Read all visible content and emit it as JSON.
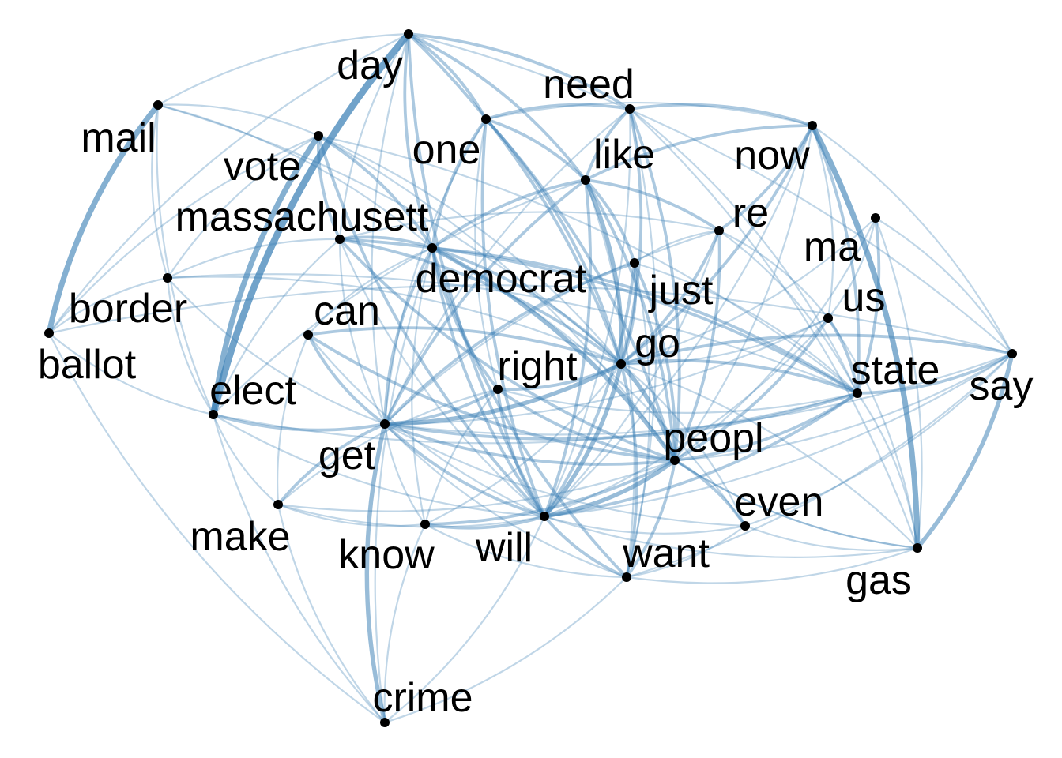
{
  "colors": {
    "background": "#ffffff",
    "edge": "#3a7fb5",
    "node": "#000000",
    "label": "#000000"
  },
  "nodes": [
    {
      "id": "day",
      "label": "day"
    },
    {
      "id": "need",
      "label": "need"
    },
    {
      "id": "mail",
      "label": "mail"
    },
    {
      "id": "one",
      "label": "one"
    },
    {
      "id": "now",
      "label": "now"
    },
    {
      "id": "vote",
      "label": "vote"
    },
    {
      "id": "like",
      "label": "like"
    },
    {
      "id": "massachusett",
      "label": "massachusett"
    },
    {
      "id": "re",
      "label": "re"
    },
    {
      "id": "ma",
      "label": "ma"
    },
    {
      "id": "democrat",
      "label": "democrat"
    },
    {
      "id": "just",
      "label": "just"
    },
    {
      "id": "border",
      "label": "border"
    },
    {
      "id": "can",
      "label": "can"
    },
    {
      "id": "us",
      "label": "us"
    },
    {
      "id": "ballot",
      "label": "ballot"
    },
    {
      "id": "go",
      "label": "go"
    },
    {
      "id": "right",
      "label": "right"
    },
    {
      "id": "state",
      "label": "state"
    },
    {
      "id": "say",
      "label": "say"
    },
    {
      "id": "elect",
      "label": "elect"
    },
    {
      "id": "peopl",
      "label": "peopl"
    },
    {
      "id": "get",
      "label": "get"
    },
    {
      "id": "even",
      "label": "even"
    },
    {
      "id": "make",
      "label": "make"
    },
    {
      "id": "know",
      "label": "know"
    },
    {
      "id": "will",
      "label": "will"
    },
    {
      "id": "want",
      "label": "want"
    },
    {
      "id": "gas",
      "label": "gas"
    },
    {
      "id": "crime",
      "label": "crime"
    }
  ],
  "edges": [
    {
      "source": "day",
      "target": "elect",
      "weight": 5
    },
    {
      "source": "mail",
      "target": "ballot",
      "weight": 4
    },
    {
      "source": "vote",
      "target": "elect",
      "weight": 4
    },
    {
      "source": "now",
      "target": "gas",
      "weight": 4
    },
    {
      "source": "say",
      "target": "gas",
      "weight": 3
    },
    {
      "source": "get",
      "target": "crime",
      "weight": 3
    },
    {
      "source": "day",
      "target": "need",
      "weight": 2
    },
    {
      "source": "day",
      "target": "one",
      "weight": 2
    },
    {
      "source": "day",
      "target": "like",
      "weight": 2
    },
    {
      "source": "day",
      "target": "democrat",
      "weight": 2
    },
    {
      "source": "day",
      "target": "go",
      "weight": 2
    },
    {
      "source": "day",
      "target": "will",
      "weight": 2
    },
    {
      "source": "day",
      "target": "get",
      "weight": 1
    },
    {
      "source": "day",
      "target": "mail",
      "weight": 1
    },
    {
      "source": "day",
      "target": "ballot",
      "weight": 1
    },
    {
      "source": "day",
      "target": "massachusett",
      "weight": 1
    },
    {
      "source": "day",
      "target": "say",
      "weight": 1
    },
    {
      "source": "need",
      "target": "one",
      "weight": 2
    },
    {
      "source": "need",
      "target": "like",
      "weight": 2
    },
    {
      "source": "need",
      "target": "now",
      "weight": 2
    },
    {
      "source": "need",
      "target": "go",
      "weight": 2
    },
    {
      "source": "need",
      "target": "peopl",
      "weight": 2
    },
    {
      "source": "need",
      "target": "get",
      "weight": 1
    },
    {
      "source": "need",
      "target": "want",
      "weight": 1
    },
    {
      "source": "need",
      "target": "state",
      "weight": 1
    },
    {
      "source": "need",
      "target": "will",
      "weight": 1
    },
    {
      "source": "mail",
      "target": "vote",
      "weight": 1
    },
    {
      "source": "mail",
      "target": "elect",
      "weight": 1
    },
    {
      "source": "mail",
      "target": "democrat",
      "weight": 1
    },
    {
      "source": "mail",
      "target": "border",
      "weight": 1
    },
    {
      "source": "mail",
      "target": "go",
      "weight": 1
    },
    {
      "source": "one",
      "target": "like",
      "weight": 2
    },
    {
      "source": "one",
      "target": "democrat",
      "weight": 2
    },
    {
      "source": "one",
      "target": "go",
      "weight": 2
    },
    {
      "source": "one",
      "target": "peopl",
      "weight": 2
    },
    {
      "source": "one",
      "target": "will",
      "weight": 2
    },
    {
      "source": "one",
      "target": "get",
      "weight": 1
    },
    {
      "source": "one",
      "target": "now",
      "weight": 1
    },
    {
      "source": "one",
      "target": "right",
      "weight": 1
    },
    {
      "source": "now",
      "target": "like",
      "weight": 2
    },
    {
      "source": "now",
      "target": "re",
      "weight": 2
    },
    {
      "source": "now",
      "target": "go",
      "weight": 2
    },
    {
      "source": "now",
      "target": "state",
      "weight": 2
    },
    {
      "source": "now",
      "target": "us",
      "weight": 1
    },
    {
      "source": "now",
      "target": "peopl",
      "weight": 1
    },
    {
      "source": "now",
      "target": "will",
      "weight": 1
    },
    {
      "source": "vote",
      "target": "massachusett",
      "weight": 2
    },
    {
      "source": "vote",
      "target": "democrat",
      "weight": 2
    },
    {
      "source": "vote",
      "target": "go",
      "weight": 1
    },
    {
      "source": "vote",
      "target": "will",
      "weight": 2
    },
    {
      "source": "vote",
      "target": "peopl",
      "weight": 1
    },
    {
      "source": "vote",
      "target": "state",
      "weight": 1
    },
    {
      "source": "vote",
      "target": "border",
      "weight": 1
    },
    {
      "source": "like",
      "target": "re",
      "weight": 2
    },
    {
      "source": "like",
      "target": "just",
      "weight": 2
    },
    {
      "source": "like",
      "target": "go",
      "weight": 3
    },
    {
      "source": "like",
      "target": "peopl",
      "weight": 2
    },
    {
      "source": "like",
      "target": "will",
      "weight": 2
    },
    {
      "source": "like",
      "target": "get",
      "weight": 2
    },
    {
      "source": "like",
      "target": "democrat",
      "weight": 2
    },
    {
      "source": "like",
      "target": "want",
      "weight": 1
    },
    {
      "source": "like",
      "target": "elect",
      "weight": 1
    },
    {
      "source": "massachusett",
      "target": "democrat",
      "weight": 2
    },
    {
      "source": "massachusett",
      "target": "state",
      "weight": 2
    },
    {
      "source": "massachusett",
      "target": "go",
      "weight": 2
    },
    {
      "source": "massachusett",
      "target": "peopl",
      "weight": 2
    },
    {
      "source": "massachusett",
      "target": "will",
      "weight": 1
    },
    {
      "source": "massachusett",
      "target": "re",
      "weight": 1
    },
    {
      "source": "massachusett",
      "target": "border",
      "weight": 1
    },
    {
      "source": "massachusett",
      "target": "get",
      "weight": 1
    },
    {
      "source": "re",
      "target": "go",
      "weight": 2
    },
    {
      "source": "re",
      "target": "peopl",
      "weight": 2
    },
    {
      "source": "re",
      "target": "just",
      "weight": 1
    },
    {
      "source": "re",
      "target": "us",
      "weight": 1
    },
    {
      "source": "re",
      "target": "state",
      "weight": 1
    },
    {
      "source": "re",
      "target": "get",
      "weight": 1
    },
    {
      "source": "re",
      "target": "will",
      "weight": 1
    },
    {
      "source": "ma",
      "target": "state",
      "weight": 2
    },
    {
      "source": "ma",
      "target": "us",
      "weight": 1
    },
    {
      "source": "ma",
      "target": "go",
      "weight": 1
    },
    {
      "source": "ma",
      "target": "peopl",
      "weight": 1
    },
    {
      "source": "ma",
      "target": "gas",
      "weight": 1
    },
    {
      "source": "ma",
      "target": "say",
      "weight": 1
    },
    {
      "source": "democrat",
      "target": "go",
      "weight": 2
    },
    {
      "source": "democrat",
      "target": "peopl",
      "weight": 3
    },
    {
      "source": "democrat",
      "target": "will",
      "weight": 2
    },
    {
      "source": "democrat",
      "target": "state",
      "weight": 2
    },
    {
      "source": "democrat",
      "target": "get",
      "weight": 2
    },
    {
      "source": "democrat",
      "target": "right",
      "weight": 2
    },
    {
      "source": "democrat",
      "target": "want",
      "weight": 2
    },
    {
      "source": "democrat",
      "target": "even",
      "weight": 1
    },
    {
      "source": "democrat",
      "target": "know",
      "weight": 1
    },
    {
      "source": "democrat",
      "target": "crime",
      "weight": 1
    },
    {
      "source": "just",
      "target": "go",
      "weight": 2
    },
    {
      "source": "just",
      "target": "peopl",
      "weight": 2
    },
    {
      "source": "just",
      "target": "will",
      "weight": 2
    },
    {
      "source": "just",
      "target": "get",
      "weight": 2
    },
    {
      "source": "just",
      "target": "want",
      "weight": 1
    },
    {
      "source": "just",
      "target": "state",
      "weight": 1
    },
    {
      "source": "border",
      "target": "ballot",
      "weight": 1
    },
    {
      "source": "border",
      "target": "elect",
      "weight": 1
    },
    {
      "source": "border",
      "target": "go",
      "weight": 1
    },
    {
      "source": "border",
      "target": "get",
      "weight": 1
    },
    {
      "source": "border",
      "target": "state",
      "weight": 1
    },
    {
      "source": "can",
      "target": "get",
      "weight": 2
    },
    {
      "source": "can",
      "target": "go",
      "weight": 2
    },
    {
      "source": "can",
      "target": "peopl",
      "weight": 2
    },
    {
      "source": "can",
      "target": "will",
      "weight": 1
    },
    {
      "source": "can",
      "target": "democrat",
      "weight": 1
    },
    {
      "source": "can",
      "target": "make",
      "weight": 1
    },
    {
      "source": "us",
      "target": "state",
      "weight": 2
    },
    {
      "source": "us",
      "target": "go",
      "weight": 1
    },
    {
      "source": "us",
      "target": "peopl",
      "weight": 2
    },
    {
      "source": "us",
      "target": "get",
      "weight": 1
    },
    {
      "source": "us",
      "target": "will",
      "weight": 1
    },
    {
      "source": "us",
      "target": "gas",
      "weight": 1
    },
    {
      "source": "ballot",
      "target": "elect",
      "weight": 1
    },
    {
      "source": "ballot",
      "target": "vote",
      "weight": 1
    },
    {
      "source": "ballot",
      "target": "say",
      "weight": 1
    },
    {
      "source": "go",
      "target": "peopl",
      "weight": 3
    },
    {
      "source": "go",
      "target": "will",
      "weight": 3
    },
    {
      "source": "go",
      "target": "get",
      "weight": 3
    },
    {
      "source": "go",
      "target": "want",
      "weight": 2
    },
    {
      "source": "go",
      "target": "state",
      "weight": 2
    },
    {
      "source": "go",
      "target": "right",
      "weight": 2
    },
    {
      "source": "go",
      "target": "say",
      "weight": 2
    },
    {
      "source": "go",
      "target": "even",
      "weight": 1
    },
    {
      "source": "go",
      "target": "know",
      "weight": 1
    },
    {
      "source": "go",
      "target": "gas",
      "weight": 1
    },
    {
      "source": "right",
      "target": "peopl",
      "weight": 2
    },
    {
      "source": "right",
      "target": "will",
      "weight": 2
    },
    {
      "source": "right",
      "target": "get",
      "weight": 2
    },
    {
      "source": "right",
      "target": "state",
      "weight": 1
    },
    {
      "source": "right",
      "target": "know",
      "weight": 1
    },
    {
      "source": "right",
      "target": "make",
      "weight": 1
    },
    {
      "source": "state",
      "target": "say",
      "weight": 2
    },
    {
      "source": "state",
      "target": "peopl",
      "weight": 2
    },
    {
      "source": "state",
      "target": "will",
      "weight": 2
    },
    {
      "source": "state",
      "target": "get",
      "weight": 2
    },
    {
      "source": "state",
      "target": "elect",
      "weight": 1
    },
    {
      "source": "state",
      "target": "gas",
      "weight": 1
    },
    {
      "source": "say",
      "target": "peopl",
      "weight": 1
    },
    {
      "source": "say",
      "target": "will",
      "weight": 1
    },
    {
      "source": "say",
      "target": "want",
      "weight": 1
    },
    {
      "source": "say",
      "target": "now",
      "weight": 1
    },
    {
      "source": "elect",
      "target": "get",
      "weight": 2
    },
    {
      "source": "elect",
      "target": "make",
      "weight": 1
    },
    {
      "source": "elect",
      "target": "will",
      "weight": 1
    },
    {
      "source": "elect",
      "target": "massachusett",
      "weight": 1
    },
    {
      "source": "peopl",
      "target": "will",
      "weight": 3
    },
    {
      "source": "peopl",
      "target": "want",
      "weight": 2
    },
    {
      "source": "peopl",
      "target": "get",
      "weight": 2
    },
    {
      "source": "peopl",
      "target": "even",
      "weight": 2
    },
    {
      "source": "peopl",
      "target": "know",
      "weight": 2
    },
    {
      "source": "peopl",
      "target": "make",
      "weight": 1
    },
    {
      "source": "peopl",
      "target": "gas",
      "weight": 1
    },
    {
      "source": "get",
      "target": "will",
      "weight": 2
    },
    {
      "source": "get",
      "target": "make",
      "weight": 2
    },
    {
      "source": "get",
      "target": "know",
      "weight": 1
    },
    {
      "source": "get",
      "target": "want",
      "weight": 1
    },
    {
      "source": "get",
      "target": "even",
      "weight": 1
    },
    {
      "source": "even",
      "target": "will",
      "weight": 1
    },
    {
      "source": "even",
      "target": "want",
      "weight": 1
    },
    {
      "source": "even",
      "target": "gas",
      "weight": 1
    },
    {
      "source": "make",
      "target": "will",
      "weight": 1
    },
    {
      "source": "make",
      "target": "know",
      "weight": 1
    },
    {
      "source": "make",
      "target": "crime",
      "weight": 1
    },
    {
      "source": "know",
      "target": "will",
      "weight": 2
    },
    {
      "source": "know",
      "target": "want",
      "weight": 1
    },
    {
      "source": "will",
      "target": "want",
      "weight": 2
    },
    {
      "source": "will",
      "target": "gas",
      "weight": 1
    },
    {
      "source": "will",
      "target": "crime",
      "weight": 1
    },
    {
      "source": "want",
      "target": "gas",
      "weight": 1
    },
    {
      "source": "want",
      "target": "crime",
      "weight": 1
    },
    {
      "source": "crime",
      "target": "know",
      "weight": 1
    },
    {
      "source": "crime",
      "target": "elect",
      "weight": 1
    },
    {
      "source": "crime",
      "target": "ballot",
      "weight": 1
    },
    {
      "source": "gas",
      "target": "need",
      "weight": 1
    },
    {
      "source": "gas",
      "target": "peopl",
      "weight": 1
    },
    {
      "source": "say",
      "target": "even",
      "weight": 1
    },
    {
      "source": "say",
      "target": "get",
      "weight": 1
    }
  ]
}
